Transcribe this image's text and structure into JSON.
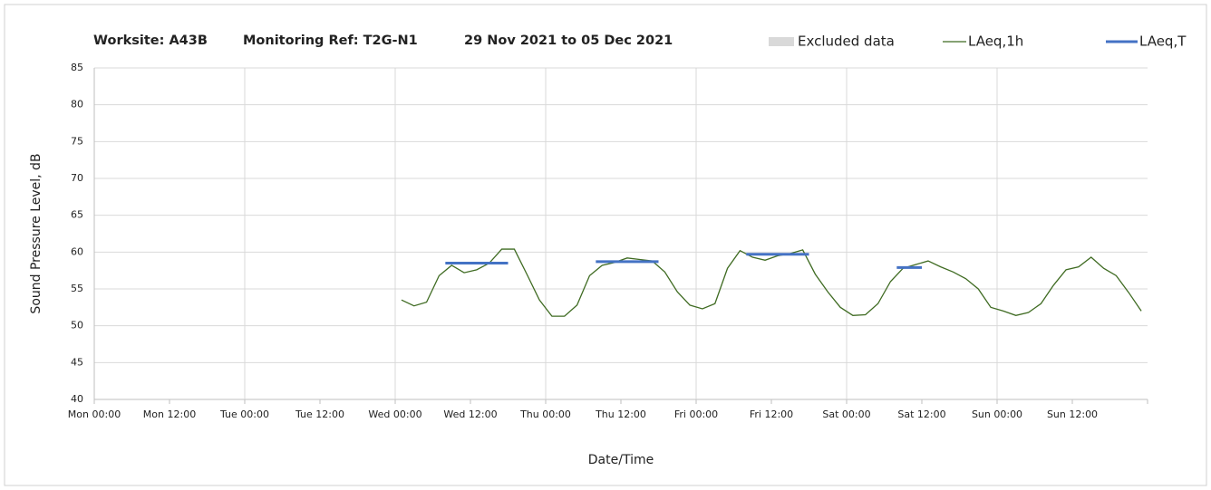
{
  "chart_data": {
    "type": "line",
    "title": [
      "Worksite: A43B",
      "Monitoring Ref: T2G-N1",
      "29 Nov 2021 to 05 Dec 2021"
    ],
    "xlabel": "Date/Time",
    "ylabel": "Sound Pressure Level, dB",
    "xlim": [
      0,
      168
    ],
    "xticks": [
      {
        "value": 0,
        "label": "Mon 00:00"
      },
      {
        "value": 12,
        "label": "Mon 12:00"
      },
      {
        "value": 24,
        "label": "Tue 00:00"
      },
      {
        "value": 36,
        "label": "Tue 12:00"
      },
      {
        "value": 48,
        "label": "Wed 00:00"
      },
      {
        "value": 60,
        "label": "Wed 12:00"
      },
      {
        "value": 72,
        "label": "Thu 00:00"
      },
      {
        "value": 84,
        "label": "Thu 12:00"
      },
      {
        "value": 96,
        "label": "Fri 00:00"
      },
      {
        "value": 108,
        "label": "Fri 12:00"
      },
      {
        "value": 120,
        "label": "Sat 00:00"
      },
      {
        "value": 132,
        "label": "Sat 12:00"
      },
      {
        "value": 144,
        "label": "Sun 00:00"
      },
      {
        "value": 156,
        "label": "Sun 12:00"
      }
    ],
    "ylim": [
      40,
      85
    ],
    "yticks": [
      40,
      45,
      50,
      55,
      60,
      65,
      70,
      75,
      80,
      85
    ],
    "grid": true,
    "series": [
      {
        "name": "Excluded data",
        "color": "#d9d9d9",
        "x": [],
        "values": []
      },
      {
        "name": "LAeq,1h",
        "color": "#3f6b22",
        "x": [
          49,
          51,
          53,
          55,
          57,
          59,
          61,
          63,
          65,
          67,
          69,
          71,
          73,
          75,
          77,
          79,
          81,
          83,
          85,
          87,
          89,
          91,
          93,
          95,
          97,
          99,
          101,
          103,
          105,
          107,
          109,
          111,
          113,
          115,
          117,
          119,
          121,
          123,
          125,
          127,
          129,
          131,
          133,
          135,
          137,
          139,
          141,
          143,
          145,
          147,
          149,
          151,
          153,
          155,
          157,
          159,
          161,
          163,
          165,
          167
        ],
        "values": [
          53.5,
          52.7,
          53.2,
          56.8,
          58.2,
          57.2,
          57.6,
          58.5,
          60.4,
          60.4,
          57.0,
          53.5,
          51.3,
          51.3,
          52.8,
          56.8,
          58.2,
          58.6,
          59.2,
          59.0,
          58.8,
          57.3,
          54.6,
          52.8,
          52.3,
          53.0,
          57.8,
          60.2,
          59.3,
          58.9,
          59.5,
          59.8,
          60.3,
          57.0,
          54.6,
          52.5,
          51.4,
          51.5,
          53.0,
          56.0,
          57.8,
          58.3,
          58.8,
          58.0,
          57.3,
          56.4,
          55.0,
          52.5,
          52.0,
          51.4,
          51.8,
          53.0,
          55.5,
          57.6,
          58.0,
          59.3,
          57.8,
          56.8,
          54.5,
          52.0
        ]
      },
      {
        "name": "LAeq,T",
        "color": "#4472c4",
        "x": [
          56,
          66,
          66,
          80,
          90,
          90,
          104,
          114,
          114,
          128,
          132
        ],
        "values": [
          58.5,
          58.5,
          null,
          58.7,
          58.7,
          null,
          59.7,
          59.7,
          null,
          57.9,
          57.9
        ]
      }
    ]
  }
}
